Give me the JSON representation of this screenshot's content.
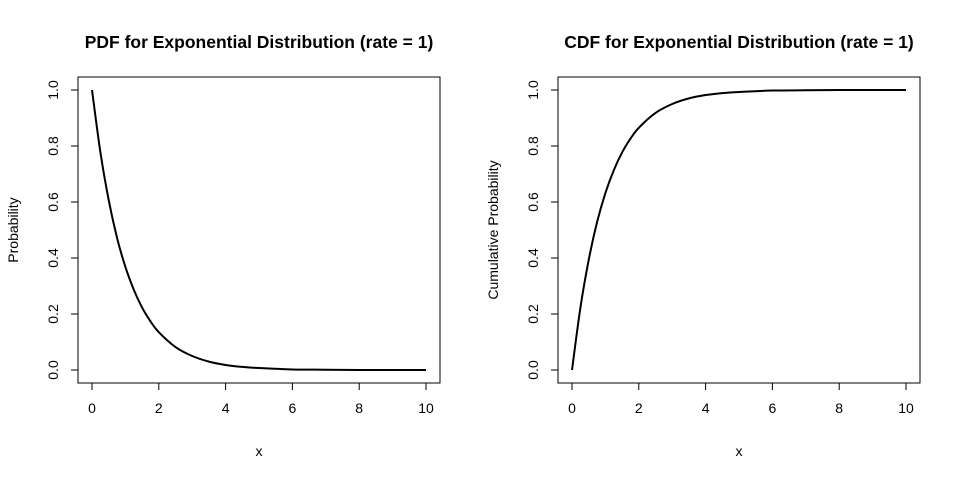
{
  "chart_data": [
    {
      "type": "line",
      "title": "PDF for Exponential Distribution (rate = 1)",
      "xlabel": "x",
      "ylabel": "Probability",
      "xlim": [
        0,
        10
      ],
      "ylim": [
        0,
        1
      ],
      "xticks": [
        "0",
        "2",
        "4",
        "6",
        "8",
        "10"
      ],
      "yticks": [
        "0.0",
        "0.2",
        "0.4",
        "0.6",
        "0.8",
        "1.0"
      ],
      "grid": false,
      "series": [
        {
          "x": [
            0,
            0.25,
            0.5,
            0.75,
            1,
            1.25,
            1.5,
            1.75,
            2,
            2.5,
            3,
            3.5,
            4,
            4.5,
            5,
            6,
            7,
            8,
            9,
            10
          ],
          "y": [
            1.0,
            0.779,
            0.607,
            0.472,
            0.368,
            0.287,
            0.223,
            0.174,
            0.135,
            0.082,
            0.05,
            0.03,
            0.018,
            0.011,
            0.007,
            0.002,
            0.001,
            0.0,
            0.0,
            0.0
          ]
        }
      ]
    },
    {
      "type": "line",
      "title": "CDF for Exponential Distribution (rate = 1)",
      "xlabel": "x",
      "ylabel": "Cumulative Probability",
      "xlim": [
        0,
        10
      ],
      "ylim": [
        0,
        1
      ],
      "xticks": [
        "0",
        "2",
        "4",
        "6",
        "8",
        "10"
      ],
      "yticks": [
        "0.0",
        "0.2",
        "0.4",
        "0.6",
        "0.8",
        "1.0"
      ],
      "grid": false,
      "series": [
        {
          "x": [
            0,
            0.25,
            0.5,
            0.75,
            1,
            1.25,
            1.5,
            1.75,
            2,
            2.5,
            3,
            3.5,
            4,
            4.5,
            5,
            6,
            7,
            8,
            9,
            10
          ],
          "y": [
            0.0,
            0.221,
            0.393,
            0.528,
            0.632,
            0.713,
            0.777,
            0.826,
            0.865,
            0.918,
            0.95,
            0.97,
            0.982,
            0.989,
            0.993,
            0.998,
            0.999,
            1.0,
            1.0,
            1.0
          ]
        }
      ]
    }
  ]
}
